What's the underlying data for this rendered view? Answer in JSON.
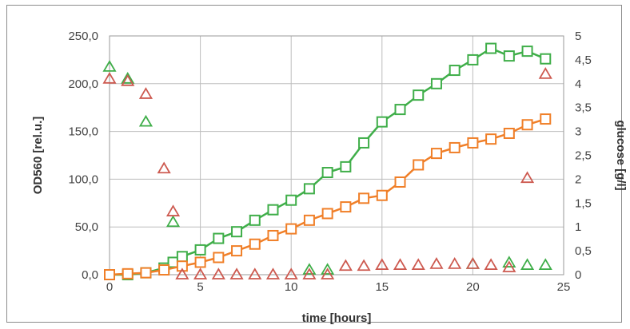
{
  "chart_data": {
    "type": "line",
    "xlabel": "time [hours]",
    "ylabel": "OD560 [rel.u.]",
    "y2label": "glucose [g/l]",
    "xlim": [
      0,
      25
    ],
    "ylim": [
      0,
      250
    ],
    "y2lim": [
      0,
      5
    ],
    "x_ticks": [
      "0",
      "5",
      "10",
      "15",
      "20",
      "25"
    ],
    "y_ticks": [
      "0,0",
      "50,0",
      "100,0",
      "150,0",
      "200,0",
      "250,0"
    ],
    "y2_ticks": [
      "0",
      "0,5",
      "1",
      "1,5",
      "2",
      "2,5",
      "3",
      "3,5",
      "4",
      "4,5",
      "5"
    ],
    "grid": true,
    "legend": "none",
    "series": [
      {
        "axis": "left",
        "marker": "square",
        "line": true,
        "color": "#3fae49",
        "points": [
          [
            0,
            0
          ],
          [
            1,
            0
          ],
          [
            2,
            2
          ],
          [
            3,
            7
          ],
          [
            3.5,
            13
          ],
          [
            4,
            19
          ],
          [
            5,
            26
          ],
          [
            6,
            38
          ],
          [
            7,
            45
          ],
          [
            8,
            57
          ],
          [
            9,
            68
          ],
          [
            10,
            78
          ],
          [
            11,
            90
          ],
          [
            12,
            107
          ],
          [
            13,
            113
          ],
          [
            14,
            138
          ],
          [
            15,
            160
          ],
          [
            16,
            173
          ],
          [
            17,
            188
          ],
          [
            18,
            200
          ],
          [
            19,
            214
          ],
          [
            20,
            225
          ],
          [
            21,
            237
          ],
          [
            22,
            229
          ],
          [
            23,
            234
          ],
          [
            24,
            226
          ]
        ]
      },
      {
        "axis": "left",
        "marker": "square",
        "line": true,
        "color": "#f07f28",
        "points": [
          [
            0,
            0
          ],
          [
            1,
            1
          ],
          [
            2,
            2
          ],
          [
            3,
            5
          ],
          [
            4,
            9
          ],
          [
            5,
            13
          ],
          [
            6,
            18
          ],
          [
            7,
            25
          ],
          [
            8,
            32
          ],
          [
            9,
            41
          ],
          [
            10,
            48
          ],
          [
            11,
            57
          ],
          [
            12,
            64
          ],
          [
            13,
            71
          ],
          [
            14,
            80
          ],
          [
            15,
            83
          ],
          [
            16,
            97
          ],
          [
            17,
            115
          ],
          [
            18,
            127
          ],
          [
            19,
            133
          ],
          [
            20,
            138
          ],
          [
            21,
            142
          ],
          [
            22,
            148
          ],
          [
            23,
            157
          ],
          [
            24,
            163
          ]
        ]
      },
      {
        "axis": "right",
        "marker": "triangle",
        "line": false,
        "color": "#3fae49",
        "points": [
          [
            0,
            4.35
          ],
          [
            1,
            4.1
          ],
          [
            2,
            3.2
          ],
          [
            3.5,
            1.1
          ],
          [
            11,
            0.1
          ],
          [
            12,
            0.1
          ],
          [
            20,
            0.22
          ],
          [
            22,
            0.25
          ],
          [
            23,
            0.2
          ],
          [
            24,
            0.2
          ]
        ]
      },
      {
        "axis": "right",
        "marker": "triangle",
        "line": false,
        "color": "#cd5a50",
        "points": [
          [
            0,
            4.1
          ],
          [
            1,
            4.05
          ],
          [
            2,
            3.78
          ],
          [
            3,
            2.22
          ],
          [
            3.5,
            1.32
          ],
          [
            4,
            0
          ],
          [
            5,
            0
          ],
          [
            6,
            0
          ],
          [
            7,
            0
          ],
          [
            8,
            0
          ],
          [
            9,
            0
          ],
          [
            10,
            0
          ],
          [
            11,
            0
          ],
          [
            12,
            0
          ],
          [
            13,
            0.18
          ],
          [
            14,
            0.18
          ],
          [
            15,
            0.2
          ],
          [
            16,
            0.2
          ],
          [
            17,
            0.2
          ],
          [
            18,
            0.22
          ],
          [
            19,
            0.22
          ],
          [
            20,
            0.22
          ],
          [
            21,
            0.2
          ],
          [
            22,
            0.15
          ],
          [
            23,
            2.02
          ],
          [
            24,
            4.2
          ]
        ]
      }
    ]
  }
}
